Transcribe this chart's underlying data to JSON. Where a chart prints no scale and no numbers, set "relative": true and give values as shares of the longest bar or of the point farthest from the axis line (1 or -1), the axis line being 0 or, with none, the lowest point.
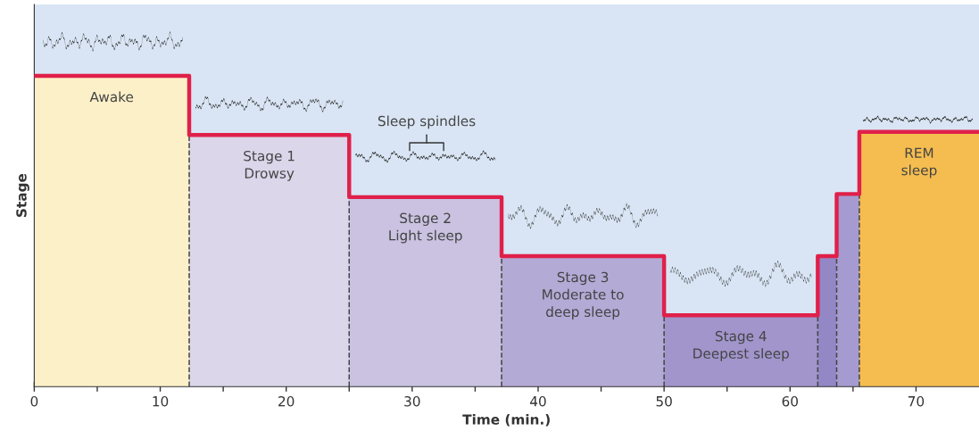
{
  "chart_data": {
    "type": "step",
    "relative": true,
    "xlabel": "Time (min.)",
    "ylabel": "Stage",
    "series": [
      {
        "color": "#e0204a",
        "x": [
          0,
          12.3,
          25,
          37.1,
          50,
          62.2,
          63.7,
          65.5,
          75
        ],
        "values": [
          1,
          0.81,
          0.61,
          0.42,
          0.23,
          0.42,
          0.62,
          0.82,
          0.82
        ]
      }
    ],
    "xlim": [
      0,
      75
    ],
    "xticks": [
      0,
      {
        "value": 5,
        "label": null
      },
      10,
      {
        "value": 15,
        "label": null
      },
      20,
      {
        "value": 25,
        "label": null
      },
      30,
      {
        "value": 35,
        "label": null
      },
      40,
      {
        "value": 45,
        "label": null
      },
      50,
      {
        "value": 55,
        "label": null
      },
      60,
      {
        "value": 65,
        "label": null
      },
      70
    ],
    "bands": [
      {
        "axis": "x",
        "from": 0,
        "to": 12.3,
        "label": "Awake",
        "color": "#fcf0c8"
      },
      {
        "axis": "x",
        "from": 12.3,
        "to": 25,
        "label": "Stage 1\nDrowsy",
        "color": "#dbd6ea"
      },
      {
        "axis": "x",
        "from": 25,
        "to": 37.1,
        "label": "Stage 2\nLight sleep",
        "color": "#cac2e0"
      },
      {
        "axis": "x",
        "from": 37.1,
        "to": 50,
        "label": "Stage 3\nModerate to\ndeep sleep",
        "color": "#b4aad6"
      },
      {
        "axis": "x",
        "from": 50,
        "to": 62.2,
        "label": "Stage 4\nDeepest sleep",
        "color": "#a295cc"
      },
      {
        "axis": "x",
        "from": 62.2,
        "to": 63.7,
        "label": null,
        "color": "#9487c6"
      },
      {
        "axis": "x",
        "from": 63.7,
        "to": 65.5,
        "label": null,
        "color": "#a69bd0"
      },
      {
        "axis": "x",
        "from": 65.5,
        "to": 75,
        "label": "REM\nsleep",
        "color": "#f5bd50"
      }
    ],
    "ref_lines": [
      {
        "axis": "x",
        "value": 12.3,
        "line_style": "dashed",
        "color": "#444444"
      },
      {
        "axis": "x",
        "value": 25,
        "line_style": "dashed",
        "color": "#444444"
      },
      {
        "axis": "x",
        "value": 37.1,
        "line_style": "dashed",
        "color": "#444444"
      },
      {
        "axis": "x",
        "value": 50,
        "line_style": "dashed",
        "color": "#444444"
      },
      {
        "axis": "x",
        "value": 62.2,
        "line_style": "dashed",
        "color": "#444444"
      },
      {
        "axis": "x",
        "value": 63.7,
        "line_style": "dashed",
        "color": "#444444"
      },
      {
        "axis": "x",
        "value": 65.5,
        "line_style": "dashed",
        "color": "#444444"
      }
    ],
    "annotations": [
      "Sleep spindles"
    ]
  }
}
